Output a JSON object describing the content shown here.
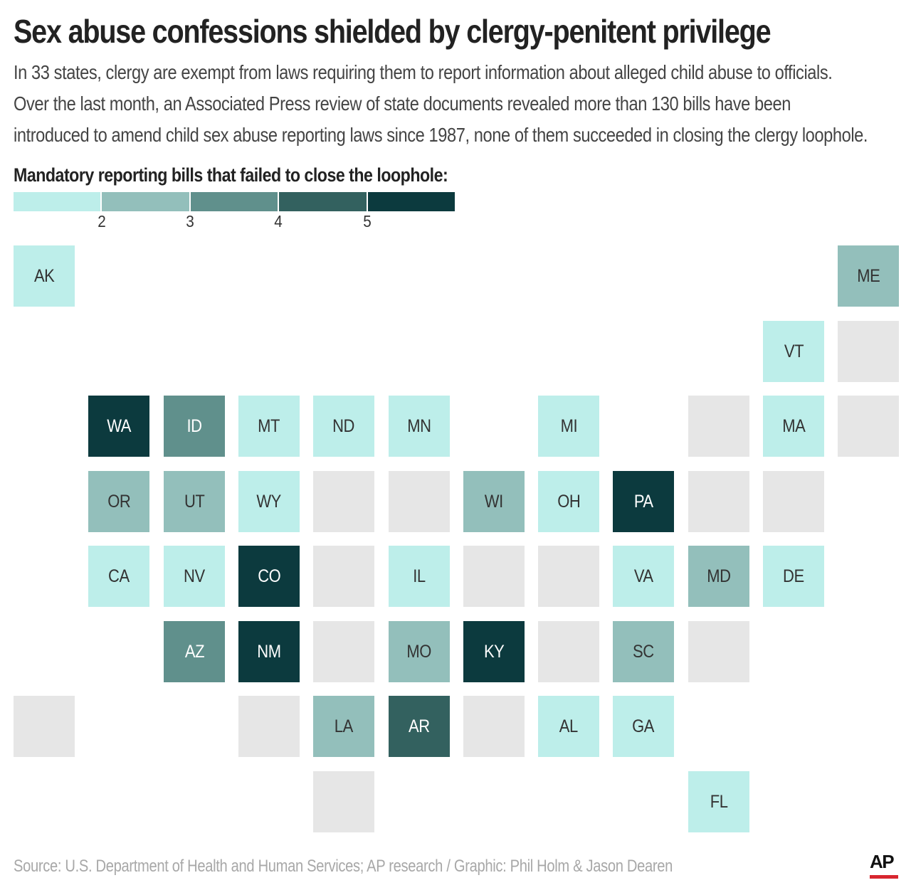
{
  "header": {
    "title": "Sex abuse confessions shielded by clergy-penitent privilege",
    "subtitle_lines": [
      "In 33 states, clergy are exempt from laws requiring them to report information about alleged child abuse to officials.",
      "Over the last month, an Associated Press review of state documents revealed more than 130 bills have been",
      "introduced to amend child sex abuse reporting laws since 1987, none of them succeeded in closing the clergy loophole."
    ]
  },
  "legend": {
    "title": "Mandatory reporting bills that failed to close the loophole:",
    "ticks": [
      "2",
      "3",
      "4",
      "5"
    ],
    "colors": [
      "#bdeeea",
      "#93bfbb",
      "#60908c",
      "#33615f",
      "#0c3a3e"
    ]
  },
  "colors": {
    "no_data": "#e6e6e6",
    "label_light": "#333333",
    "label_dark": "#ffffff"
  },
  "chart_data": {
    "type": "heatmap",
    "title": "Mandatory reporting bills that failed to close the loophole:",
    "description_scale": "1 to 5 or more bills (legend ticks at 2, 3, 4, 5)",
    "states": [
      {
        "label": "AK",
        "col": 0,
        "row": 0,
        "value": 1
      },
      {
        "label": "ME",
        "col": 11,
        "row": 0,
        "value": 2
      },
      {
        "label": "VT",
        "col": 10,
        "row": 1,
        "value": 1
      },
      {
        "label": "",
        "col": 11,
        "row": 1,
        "value": null
      },
      {
        "label": "WA",
        "col": 1,
        "row": 2,
        "value": 5
      },
      {
        "label": "ID",
        "col": 2,
        "row": 2,
        "value": 3
      },
      {
        "label": "MT",
        "col": 3,
        "row": 2,
        "value": 1
      },
      {
        "label": "ND",
        "col": 4,
        "row": 2,
        "value": 1
      },
      {
        "label": "MN",
        "col": 5,
        "row": 2,
        "value": 1
      },
      {
        "label": "MI",
        "col": 7,
        "row": 2,
        "value": 1
      },
      {
        "label": "",
        "col": 9,
        "row": 2,
        "value": null
      },
      {
        "label": "MA",
        "col": 10,
        "row": 2,
        "value": 1
      },
      {
        "label": "",
        "col": 11,
        "row": 2,
        "value": null
      },
      {
        "label": "OR",
        "col": 1,
        "row": 3,
        "value": 2
      },
      {
        "label": "UT",
        "col": 2,
        "row": 3,
        "value": 2
      },
      {
        "label": "WY",
        "col": 3,
        "row": 3,
        "value": 1
      },
      {
        "label": "",
        "col": 4,
        "row": 3,
        "value": null
      },
      {
        "label": "",
        "col": 5,
        "row": 3,
        "value": null
      },
      {
        "label": "WI",
        "col": 6,
        "row": 3,
        "value": 2
      },
      {
        "label": "OH",
        "col": 7,
        "row": 3,
        "value": 1
      },
      {
        "label": "PA",
        "col": 8,
        "row": 3,
        "value": 5
      },
      {
        "label": "",
        "col": 9,
        "row": 3,
        "value": null
      },
      {
        "label": "",
        "col": 10,
        "row": 3,
        "value": null
      },
      {
        "label": "CA",
        "col": 1,
        "row": 4,
        "value": 1
      },
      {
        "label": "NV",
        "col": 2,
        "row": 4,
        "value": 1
      },
      {
        "label": "CO",
        "col": 3,
        "row": 4,
        "value": 5
      },
      {
        "label": "",
        "col": 4,
        "row": 4,
        "value": null
      },
      {
        "label": "IL",
        "col": 5,
        "row": 4,
        "value": 1
      },
      {
        "label": "",
        "col": 6,
        "row": 4,
        "value": null
      },
      {
        "label": "",
        "col": 7,
        "row": 4,
        "value": null
      },
      {
        "label": "VA",
        "col": 8,
        "row": 4,
        "value": 1
      },
      {
        "label": "MD",
        "col": 9,
        "row": 4,
        "value": 2
      },
      {
        "label": "DE",
        "col": 10,
        "row": 4,
        "value": 1
      },
      {
        "label": "AZ",
        "col": 2,
        "row": 5,
        "value": 3
      },
      {
        "label": "NM",
        "col": 3,
        "row": 5,
        "value": 5
      },
      {
        "label": "",
        "col": 4,
        "row": 5,
        "value": null
      },
      {
        "label": "MO",
        "col": 5,
        "row": 5,
        "value": 2
      },
      {
        "label": "KY",
        "col": 6,
        "row": 5,
        "value": 5
      },
      {
        "label": "",
        "col": 7,
        "row": 5,
        "value": null
      },
      {
        "label": "SC",
        "col": 8,
        "row": 5,
        "value": 2
      },
      {
        "label": "",
        "col": 9,
        "row": 5,
        "value": null
      },
      {
        "label": "",
        "col": 0,
        "row": 6,
        "value": null
      },
      {
        "label": "",
        "col": 3,
        "row": 6,
        "value": null
      },
      {
        "label": "LA",
        "col": 4,
        "row": 6,
        "value": 2
      },
      {
        "label": "AR",
        "col": 5,
        "row": 6,
        "value": 4
      },
      {
        "label": "",
        "col": 6,
        "row": 6,
        "value": null
      },
      {
        "label": "AL",
        "col": 7,
        "row": 6,
        "value": 1
      },
      {
        "label": "GA",
        "col": 8,
        "row": 6,
        "value": 1
      },
      {
        "label": "",
        "col": 4,
        "row": 7,
        "value": null
      },
      {
        "label": "FL",
        "col": 9,
        "row": 7,
        "value": 1
      }
    ]
  },
  "footer": {
    "source": "Source: U.S. Department of Health and Human Services; AP research / Graphic: Phil Holm & Jason Dearen",
    "logo_text": "AP",
    "logo_color": "#d8262f"
  }
}
